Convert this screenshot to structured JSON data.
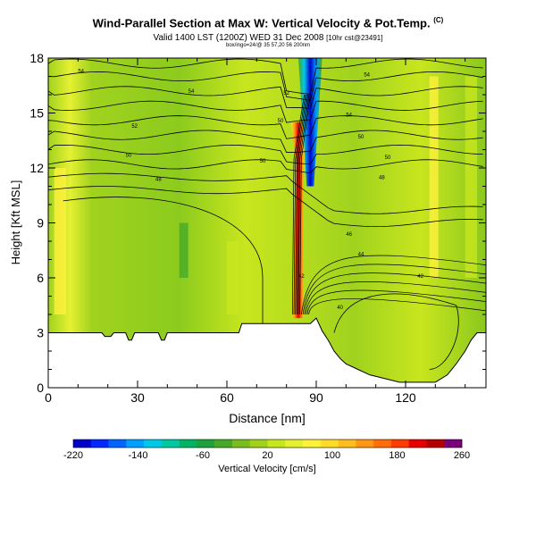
{
  "header": {
    "title": "Wind-Parallel Section at Max W: Vertical Velocity & Pot.Temp.",
    "title_unit": "(C)",
    "subtitle": "Valid 1400 LST (1200Z) WED 31 Dec 2008",
    "subtitle_small": "[10hr cst@23491]",
    "meta": "box/ingo=24/@ 35 57,20 56 200nm"
  },
  "chart_data": {
    "type": "heatmap",
    "title": "Wind-Parallel Section at Max W: Vertical Velocity & Pot.Temp.",
    "xlabel": "Distance [nm]",
    "ylabel": "Height [Kft MSL]",
    "xlim": [
      0,
      147
    ],
    "ylim": [
      0,
      18
    ],
    "x_ticks": [
      0,
      30,
      60,
      90,
      120
    ],
    "y_ticks": [
      0,
      3,
      6,
      9,
      12,
      15,
      18
    ],
    "colorbar": {
      "label": "Vertical Velocity [cm/s]",
      "min": -220,
      "max": 260,
      "tick_labels": [
        -220,
        -140,
        -60,
        20,
        100,
        180,
        260
      ],
      "colors": [
        "#0000c8",
        "#0028ff",
        "#0064ff",
        "#00a0ff",
        "#00c8e6",
        "#00c8a0",
        "#00b464",
        "#1ea03c",
        "#46aa28",
        "#78be1e",
        "#a0d21e",
        "#c8e61e",
        "#e6f032",
        "#fff03c",
        "#ffdc28",
        "#ffbe1e",
        "#ff9614",
        "#ff6e0a",
        "#ff3c00",
        "#e60000",
        "#b40000",
        "#780078"
      ]
    },
    "terrain_kft": [
      [
        0,
        3.0
      ],
      [
        18,
        3.0
      ],
      [
        19,
        2.8
      ],
      [
        21,
        2.8
      ],
      [
        22,
        3.0
      ],
      [
        26,
        3.0
      ],
      [
        27,
        2.6
      ],
      [
        28,
        2.6
      ],
      [
        29,
        3.0
      ],
      [
        37,
        3.0
      ],
      [
        38,
        2.6
      ],
      [
        39,
        2.6
      ],
      [
        40,
        3.0
      ],
      [
        64,
        3.0
      ],
      [
        65,
        3.5
      ],
      [
        88,
        3.5
      ],
      [
        90,
        3.8
      ],
      [
        92,
        3.1
      ],
      [
        94,
        2.6
      ],
      [
        96,
        2.0
      ],
      [
        98,
        1.6
      ],
      [
        100,
        1.3
      ],
      [
        104,
        1.0
      ],
      [
        108,
        0.7
      ],
      [
        113,
        0.5
      ],
      [
        118,
        0.3
      ],
      [
        130,
        0.3
      ],
      [
        134,
        0.7
      ],
      [
        137,
        1.3
      ],
      [
        140,
        2.0
      ],
      [
        142,
        2.6
      ],
      [
        144,
        3.0
      ],
      [
        147,
        3.0
      ]
    ],
    "updraft": {
      "x_nm": 84,
      "max_cm_s": 240
    },
    "downdraft": {
      "x_nm": 88,
      "min_cm_s": -220
    },
    "contour_labels": [
      {
        "x": 11,
        "y": 17.2,
        "text": "54"
      },
      {
        "x": 48,
        "y": 16.1,
        "text": "54"
      },
      {
        "x": 80,
        "y": 16.0,
        "text": "52"
      },
      {
        "x": 107,
        "y": 17.0,
        "text": "54"
      },
      {
        "x": 101,
        "y": 14.8,
        "text": "54"
      },
      {
        "x": 29,
        "y": 14.2,
        "text": "52"
      },
      {
        "x": 78,
        "y": 14.5,
        "text": "50"
      },
      {
        "x": 105,
        "y": 13.6,
        "text": "50"
      },
      {
        "x": 27,
        "y": 12.6,
        "text": "50"
      },
      {
        "x": 72,
        "y": 12.3,
        "text": "50"
      },
      {
        "x": 114,
        "y": 12.5,
        "text": "50"
      },
      {
        "x": 37,
        "y": 11.3,
        "text": "48"
      },
      {
        "x": 112,
        "y": 11.4,
        "text": "48"
      },
      {
        "x": 101,
        "y": 8.3,
        "text": "46"
      },
      {
        "x": 105,
        "y": 7.2,
        "text": "44"
      },
      {
        "x": 125,
        "y": 6.0,
        "text": "42"
      },
      {
        "x": 85,
        "y": 6.0,
        "text": "42"
      },
      {
        "x": 98,
        "y": 4.3,
        "text": "40"
      }
    ]
  }
}
